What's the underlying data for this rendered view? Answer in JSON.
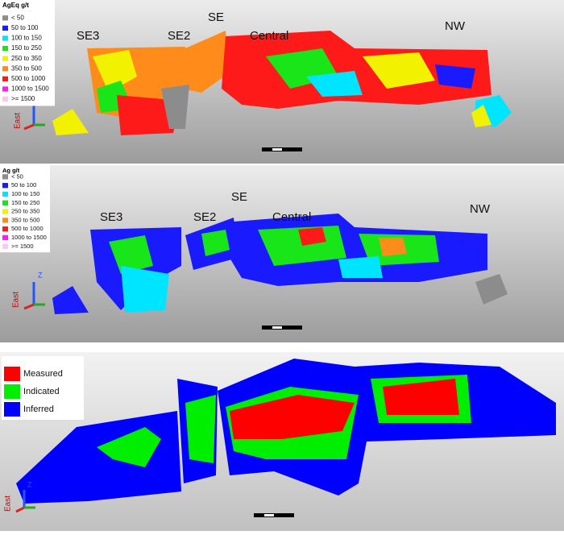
{
  "panels": [
    {
      "legend": {
        "title": "AgEq g/t",
        "items": [
          {
            "label": "< 50",
            "color": "#8c8c8c"
          },
          {
            "label": "50 to 100",
            "color": "#1a1aff"
          },
          {
            "label": "100 to 150",
            "color": "#00e5ff"
          },
          {
            "label": "150 to 250",
            "color": "#19e619"
          },
          {
            "label": "250 to 350",
            "color": "#f2f200"
          },
          {
            "label": "350 to 500",
            "color": "#ff8c1a"
          },
          {
            "label": "500 to 1000",
            "color": "#ff1a1a"
          },
          {
            "label": "1000 to 1500",
            "color": "#ff1aff"
          },
          {
            "label": ">= 1500",
            "color": "#ffc8f0"
          }
        ]
      },
      "labels": [
        "SE3",
        "SE2",
        "SE",
        "Central",
        "NW"
      ],
      "axis": "East"
    },
    {
      "legend": {
        "title": "Ag g/t",
        "items": [
          {
            "label": "< 50",
            "color": "#8c8c8c"
          },
          {
            "label": "50 to 100",
            "color": "#1a1aff"
          },
          {
            "label": "100 to 150",
            "color": "#00e5ff"
          },
          {
            "label": "150 to 250",
            "color": "#19e619"
          },
          {
            "label": "250 to 350",
            "color": "#f2f200"
          },
          {
            "label": "350 to 500",
            "color": "#ff8c1a"
          },
          {
            "label": "500 to 1000",
            "color": "#ff1a1a"
          },
          {
            "label": "1000 to 1500",
            "color": "#ff1aff"
          },
          {
            "label": ">= 1500",
            "color": "#ffc8f0"
          }
        ]
      },
      "labels": [
        "SE3",
        "SE2",
        "SE",
        "Central",
        "NW"
      ],
      "axis": "East",
      "up": "Z"
    },
    {
      "legend": {
        "items": [
          {
            "label": "Measured",
            "color": "#ff0000"
          },
          {
            "label": "Indicated",
            "color": "#00ee00"
          },
          {
            "label": "Inferred",
            "color": "#0000ff"
          }
        ]
      },
      "axis": "East",
      "up": "Z"
    }
  ]
}
